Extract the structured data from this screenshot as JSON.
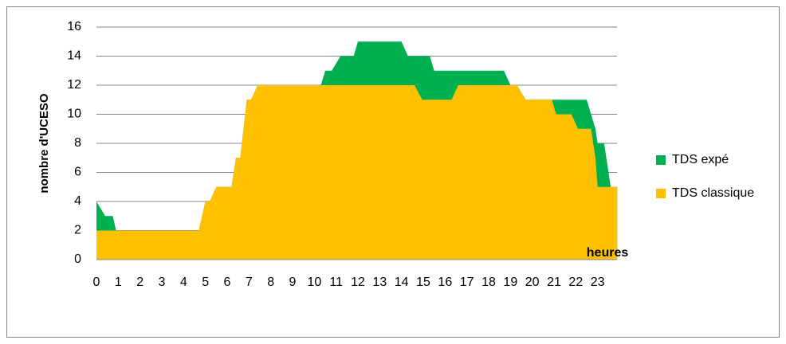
{
  "chart_data": {
    "type": "area",
    "xlabel": "heures",
    "ylabel": "nombre d'UCESO",
    "x": [
      0,
      0.4,
      0.75,
      0.9,
      4.7,
      5.0,
      5.2,
      5.5,
      6.2,
      6.4,
      6.6,
      6.9,
      7.1,
      7.4,
      10.3,
      10.5,
      10.8,
      11.2,
      11.8,
      12.0,
      14.0,
      14.3,
      14.6,
      14.95,
      15.3,
      15.5,
      16.3,
      16.6,
      18.7,
      19.0,
      19.3,
      19.7,
      20.9,
      21.1,
      21.8,
      22.1,
      22.5,
      22.7,
      22.9,
      23.0,
      23.3,
      23.6,
      23.9
    ],
    "series": [
      {
        "name": "TDS expé",
        "color": "#00b050",
        "values": [
          4,
          3,
          3,
          2,
          2,
          4,
          4,
          5,
          5,
          7,
          7,
          11,
          11,
          12,
          12,
          13,
          13,
          14,
          14,
          15,
          15,
          14,
          14,
          14,
          14,
          13,
          13,
          13,
          13,
          12,
          12,
          11,
          11,
          11,
          11,
          11,
          11,
          10,
          9,
          8,
          8,
          5,
          5
        ]
      },
      {
        "name": "TDS classique",
        "color": "#ffc000",
        "values": [
          2,
          2,
          2,
          2,
          2,
          4,
          4,
          5,
          5,
          7,
          7,
          11,
          11,
          12,
          12,
          12,
          12,
          12,
          12,
          12,
          12,
          12,
          12,
          11,
          11,
          11,
          11,
          12,
          12,
          12,
          12,
          11,
          11,
          10,
          10,
          9,
          9,
          9,
          7,
          5,
          5,
          5,
          5
        ]
      }
    ],
    "xlim": [
      0,
      24
    ],
    "xticks": [
      0,
      1,
      2,
      3,
      4,
      5,
      6,
      7,
      8,
      9,
      10,
      11,
      12,
      13,
      14,
      15,
      16,
      17,
      18,
      19,
      20,
      21,
      22,
      23
    ],
    "ylim": [
      0,
      16
    ],
    "yticks": [
      0,
      2,
      4,
      6,
      8,
      10,
      12,
      14,
      16
    ],
    "grid": true,
    "legend": "right"
  }
}
